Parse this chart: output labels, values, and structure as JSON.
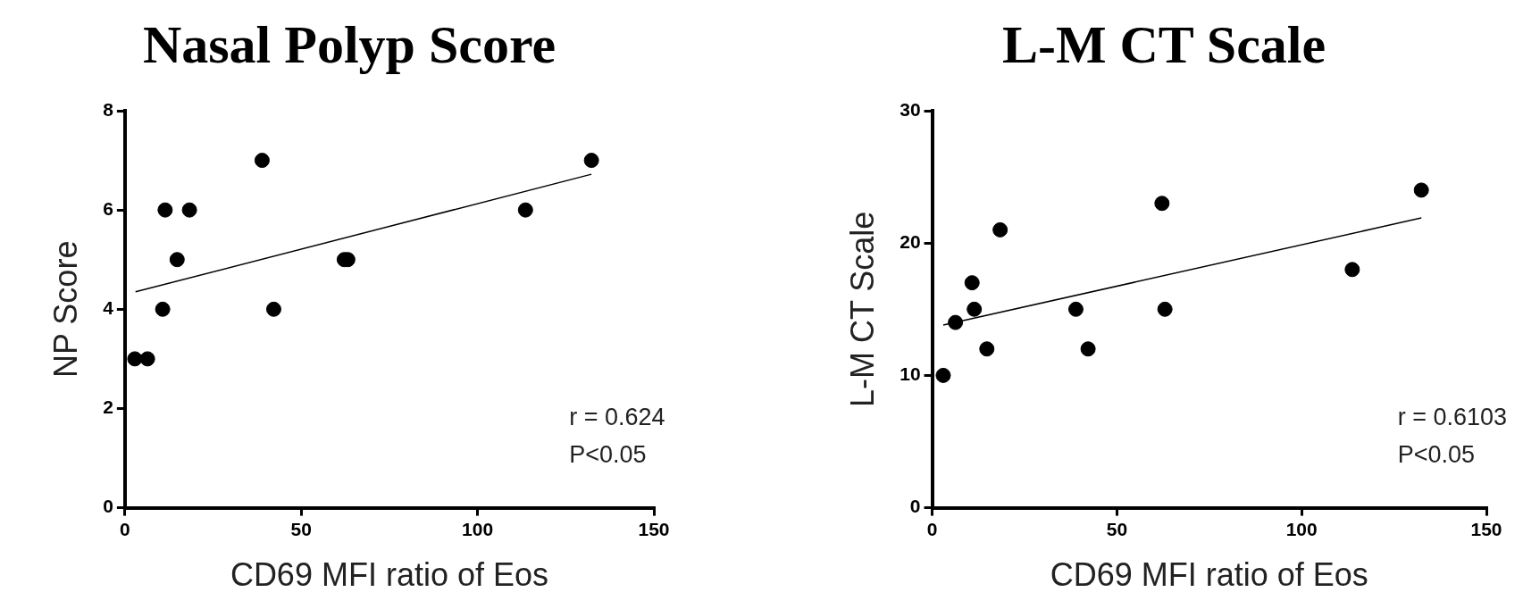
{
  "chart_data": [
    {
      "type": "scatter",
      "title": "Nasal Polyp Score",
      "xlabel": "CD69 MFI ratio of Eos",
      "ylabel": "NP Score",
      "xlim": [
        0,
        150
      ],
      "xticks": [
        0,
        50,
        100,
        150
      ],
      "ylim": [
        0,
        8
      ],
      "yticks": [
        0,
        2,
        4,
        6,
        8
      ],
      "grid": false,
      "legend": false,
      "marker": "circle",
      "annotations": [
        "r = 0.624",
        "P<0.05"
      ],
      "series": [
        {
          "color": "#000000",
          "x": [
            2.8,
            6.4,
            10.7,
            11.4,
            14.8,
            18.3,
            38.9,
            42.2,
            62.2,
            63.2,
            113.6,
            132.3
          ],
          "values": [
            3,
            3,
            4,
            6,
            5,
            6,
            7,
            4,
            5,
            5,
            6,
            7
          ]
        },
        {
          "type": "line",
          "color": "#000000",
          "marker": "none",
          "x": [
            3,
            132.3
          ],
          "values": [
            4.35,
            6.72
          ]
        }
      ]
    },
    {
      "type": "scatter",
      "title": "L-M CT Scale",
      "xlabel": "CD69 MFI ratio of Eos",
      "ylabel": "L-M CT Scale",
      "xlim": [
        0,
        150
      ],
      "xticks": [
        0,
        50,
        100,
        150
      ],
      "ylim": [
        0,
        30
      ],
      "yticks": [
        0,
        10,
        20,
        30
      ],
      "grid": false,
      "legend": false,
      "marker": "circle",
      "annotations": [
        "r = 0.6103",
        "P<0.05"
      ],
      "series": [
        {
          "color": "#000000",
          "x": [
            3.0,
            6.3,
            10.8,
            11.4,
            14.8,
            18.4,
            38.9,
            42.2,
            62.2,
            63.0,
            113.7,
            132.4
          ],
          "values": [
            10,
            14,
            17,
            15,
            12,
            21,
            15,
            12,
            23,
            15,
            18,
            24
          ]
        },
        {
          "type": "line",
          "color": "#000000",
          "marker": "none",
          "x": [
            3,
            132.4
          ],
          "values": [
            13.8,
            21.9
          ]
        }
      ]
    }
  ]
}
